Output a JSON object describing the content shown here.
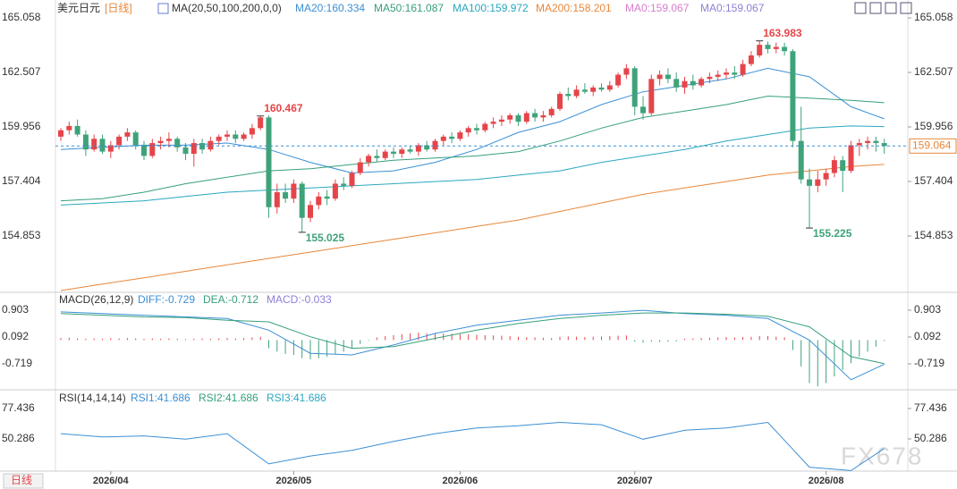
{
  "chart_data": {
    "type": "candlestick",
    "symbol": "美元日元",
    "period": "[日线]",
    "ma_label": "MA(20,50,100,200,0,0)",
    "up_color": "#e5454a",
    "down_color": "#3fa37a",
    "ylim": [
      152.3,
      165.56
    ],
    "yticks": [
      165.058,
      162.507,
      159.956,
      157.404,
      154.853
    ],
    "ohlc": [
      [
        159.5,
        159.9,
        159.3,
        159.8
      ],
      [
        159.8,
        160.2,
        159.6,
        160.0
      ],
      [
        160.0,
        160.3,
        159.5,
        159.6
      ],
      [
        159.6,
        159.8,
        158.6,
        158.9
      ],
      [
        158.9,
        159.6,
        158.8,
        159.4
      ],
      [
        159.4,
        159.6,
        158.7,
        158.8
      ],
      [
        158.8,
        159.3,
        158.5,
        159.1
      ],
      [
        159.1,
        159.6,
        158.9,
        159.5
      ],
      [
        159.5,
        159.9,
        159.3,
        159.7
      ],
      [
        159.7,
        159.8,
        158.9,
        159.1
      ],
      [
        159.1,
        159.3,
        158.4,
        158.6
      ],
      [
        158.6,
        159.4,
        158.5,
        159.2
      ],
      [
        159.2,
        159.5,
        158.9,
        159.3
      ],
      [
        159.3,
        159.7,
        159.0,
        159.4
      ],
      [
        159.4,
        159.5,
        158.8,
        159.0
      ],
      [
        159.0,
        159.2,
        158.4,
        158.7
      ],
      [
        158.7,
        159.4,
        158.1,
        159.2
      ],
      [
        159.2,
        159.4,
        158.7,
        158.9
      ],
      [
        158.9,
        159.5,
        158.8,
        159.3
      ],
      [
        159.3,
        159.6,
        159.1,
        159.5
      ],
      [
        159.5,
        159.8,
        159.3,
        159.6
      ],
      [
        159.6,
        159.8,
        159.2,
        159.4
      ],
      [
        159.4,
        159.7,
        159.3,
        159.6
      ],
      [
        159.6,
        160.1,
        159.4,
        159.9
      ],
      [
        159.9,
        160.467,
        159.8,
        160.4
      ],
      [
        160.4,
        160.5,
        155.7,
        156.2
      ],
      [
        156.2,
        157.3,
        155.9,
        156.9
      ],
      [
        156.9,
        157.3,
        156.4,
        156.6
      ],
      [
        156.6,
        157.5,
        156.4,
        157.3
      ],
      [
        157.3,
        157.4,
        155.025,
        155.7
      ],
      [
        155.7,
        156.5,
        155.5,
        156.3
      ],
      [
        156.3,
        156.9,
        156.1,
        156.7
      ],
      [
        156.7,
        157.0,
        156.3,
        156.6
      ],
      [
        156.6,
        157.5,
        156.5,
        157.3
      ],
      [
        157.3,
        157.6,
        157.0,
        157.2
      ],
      [
        157.2,
        157.9,
        157.1,
        157.8
      ],
      [
        157.8,
        158.5,
        157.7,
        158.3
      ],
      [
        158.3,
        158.7,
        158.1,
        158.6
      ],
      [
        158.6,
        158.9,
        158.3,
        158.5
      ],
      [
        158.5,
        158.9,
        158.4,
        158.8
      ],
      [
        158.8,
        159.0,
        158.5,
        158.7
      ],
      [
        158.7,
        159.0,
        158.5,
        158.9
      ],
      [
        158.9,
        159.1,
        158.7,
        158.8
      ],
      [
        158.8,
        159.2,
        158.6,
        159.1
      ],
      [
        159.1,
        159.3,
        158.8,
        158.9
      ],
      [
        158.9,
        159.4,
        158.8,
        159.3
      ],
      [
        159.3,
        159.6,
        159.1,
        159.5
      ],
      [
        159.5,
        159.7,
        159.2,
        159.4
      ],
      [
        159.4,
        159.8,
        159.3,
        159.7
      ],
      [
        159.7,
        160.0,
        159.5,
        159.9
      ],
      [
        159.9,
        160.1,
        159.6,
        159.8
      ],
      [
        159.8,
        160.2,
        159.7,
        160.1
      ],
      [
        160.1,
        160.4,
        159.9,
        160.2
      ],
      [
        160.2,
        160.5,
        160.0,
        160.3
      ],
      [
        160.3,
        160.6,
        160.1,
        160.5
      ],
      [
        160.5,
        160.6,
        160.0,
        160.2
      ],
      [
        160.2,
        160.7,
        160.1,
        160.6
      ],
      [
        160.6,
        160.8,
        160.2,
        160.4
      ],
      [
        160.4,
        160.7,
        160.2,
        160.5
      ],
      [
        160.5,
        160.9,
        160.4,
        160.8
      ],
      [
        160.8,
        161.6,
        160.7,
        161.5
      ],
      [
        161.5,
        161.8,
        161.2,
        161.4
      ],
      [
        161.4,
        161.9,
        161.3,
        161.7
      ],
      [
        161.7,
        162.0,
        161.5,
        161.6
      ],
      [
        161.6,
        161.9,
        161.4,
        161.8
      ],
      [
        161.8,
        162.0,
        161.6,
        161.7
      ],
      [
        161.7,
        162.1,
        161.6,
        161.9
      ],
      [
        161.9,
        162.5,
        161.8,
        162.4
      ],
      [
        162.4,
        162.9,
        162.2,
        162.7
      ],
      [
        162.7,
        162.8,
        160.5,
        160.9
      ],
      [
        160.9,
        161.4,
        160.3,
        160.6
      ],
      [
        160.6,
        162.4,
        160.5,
        162.2
      ],
      [
        162.2,
        162.6,
        161.9,
        162.4
      ],
      [
        162.4,
        162.7,
        162.0,
        162.2
      ],
      [
        162.2,
        162.5,
        161.6,
        161.8
      ],
      [
        161.8,
        162.3,
        161.5,
        162.1
      ],
      [
        162.1,
        162.4,
        161.7,
        161.9
      ],
      [
        161.9,
        162.3,
        161.8,
        162.2
      ],
      [
        162.2,
        162.5,
        162.0,
        162.3
      ],
      [
        162.3,
        162.6,
        162.1,
        162.4
      ],
      [
        162.4,
        162.7,
        162.2,
        162.5
      ],
      [
        162.5,
        162.8,
        162.2,
        162.4
      ],
      [
        162.4,
        163.1,
        162.3,
        162.9
      ],
      [
        162.9,
        163.5,
        162.8,
        163.3
      ],
      [
        163.3,
        163.983,
        163.2,
        163.8
      ],
      [
        163.8,
        163.95,
        163.4,
        163.6
      ],
      [
        163.6,
        163.9,
        163.4,
        163.7
      ],
      [
        163.7,
        163.9,
        163.3,
        163.5
      ],
      [
        163.5,
        163.6,
        159.0,
        159.3
      ],
      [
        159.3,
        160.9,
        157.3,
        157.5
      ],
      [
        157.5,
        158.0,
        155.225,
        157.2
      ],
      [
        157.2,
        157.9,
        156.9,
        157.5
      ],
      [
        157.5,
        158.0,
        157.2,
        157.8
      ],
      [
        157.8,
        158.6,
        157.6,
        158.4
      ],
      [
        158.4,
        158.6,
        156.9,
        157.9
      ],
      [
        157.9,
        159.3,
        157.8,
        159.1
      ],
      [
        159.1,
        159.4,
        158.6,
        159.2
      ],
      [
        159.2,
        159.5,
        158.9,
        159.3
      ],
      [
        159.3,
        159.5,
        158.8,
        159.2
      ],
      [
        159.2,
        159.4,
        158.7,
        159.064
      ]
    ],
    "extremes": [
      160.467,
      155.025,
      163.983,
      155.225
    ],
    "xticks": [
      {
        "value": 6,
        "label": "2026/04"
      },
      {
        "value": 28,
        "label": "2026/05"
      },
      {
        "value": 48,
        "label": "2026/06"
      },
      {
        "value": 69,
        "label": "2026/07"
      },
      {
        "value": 92,
        "label": "2026/08"
      }
    ],
    "ma_x": [
      0,
      5,
      10,
      15,
      20,
      25,
      30,
      35,
      40,
      45,
      50,
      55,
      60,
      65,
      70,
      75,
      80,
      85,
      90,
      95,
      99
    ],
    "ma_series": [
      {
        "name": "MA20:160.334",
        "color": "#3b8fd6",
        "values": [
          158.9,
          159.0,
          159.1,
          159.1,
          159.2,
          158.9,
          158.3,
          157.8,
          157.9,
          158.3,
          158.9,
          159.7,
          160.2,
          161.0,
          161.6,
          161.9,
          162.2,
          162.7,
          162.3,
          160.9,
          160.334
        ]
      },
      {
        "name": "MA50:161.087",
        "color": "#35a07b",
        "values": [
          156.5,
          156.6,
          156.9,
          157.3,
          157.6,
          157.9,
          158.0,
          158.2,
          158.4,
          158.5,
          158.6,
          158.8,
          159.3,
          159.9,
          160.4,
          160.7,
          161.0,
          161.4,
          161.3,
          161.2,
          161.087
        ]
      },
      {
        "name": "MA100:159.972",
        "color": "#2aa7c0",
        "values": [
          156.3,
          156.4,
          156.5,
          156.7,
          156.9,
          157.0,
          157.1,
          157.2,
          157.3,
          157.4,
          157.5,
          157.7,
          157.9,
          158.3,
          158.6,
          158.9,
          159.3,
          159.6,
          159.9,
          160.0,
          159.972
        ]
      },
      {
        "name": "MA200:158.201",
        "color": "#e8873a",
        "values": [
          152.3,
          152.6,
          152.9,
          153.2,
          153.5,
          153.8,
          154.1,
          154.4,
          154.7,
          155.0,
          155.3,
          155.6,
          156.0,
          156.4,
          156.8,
          157.1,
          157.4,
          157.7,
          157.9,
          158.1,
          158.201
        ]
      }
    ],
    "ma_extra": [
      {
        "name": "MA0:159.067",
        "color": "#d77dcf"
      },
      {
        "name": "MA0:159.067",
        "color": "#8f7fd8"
      }
    ],
    "macd": {
      "title": "MACD(26,12,9)",
      "ylim": [
        -1.395,
        1.362
      ],
      "yticks": [
        0.903,
        0.092,
        -0.719
      ],
      "hist_name": "MACD:-0.033",
      "hist_color": "#8f7fd8",
      "hist": [
        0.06,
        0.07,
        0.05,
        0.04,
        0.05,
        0.04,
        0.06,
        0.05,
        0.06,
        0.05,
        0.04,
        0.05,
        0.04,
        0.05,
        0.04,
        0.03,
        0.04,
        0.05,
        0.04,
        0.05,
        0.06,
        0.05,
        0.06,
        0.08,
        0.1,
        -0.25,
        -0.35,
        -0.42,
        -0.45,
        -0.55,
        -0.58,
        -0.55,
        -0.5,
        -0.42,
        -0.35,
        -0.25,
        -0.12,
        -0.02,
        0.08,
        0.12,
        0.15,
        0.18,
        0.2,
        0.22,
        0.2,
        0.21,
        0.2,
        0.19,
        0.18,
        0.17,
        0.16,
        0.15,
        0.14,
        0.13,
        0.12,
        0.1,
        0.09,
        0.08,
        0.07,
        0.06,
        0.1,
        0.11,
        0.1,
        0.09,
        0.1,
        0.11,
        0.12,
        0.13,
        0.14,
        -0.05,
        -0.08,
        -0.05,
        -0.06,
        -0.05,
        -0.04,
        0.04,
        0.05,
        0.06,
        0.07,
        0.08,
        0.09,
        0.08,
        0.09,
        0.1,
        0.12,
        0.12,
        0.1,
        0.08,
        -0.3,
        -0.8,
        -1.3,
        -1.4,
        -1.3,
        -1.1,
        -0.9,
        -0.7,
        -0.5,
        -0.35,
        -0.2,
        -0.033
      ],
      "lines": [
        {
          "name": "DIFF:-0.729",
          "color": "#3b8fd6",
          "values": [
            0.85,
            0.8,
            0.75,
            0.7,
            0.65,
            0.3,
            -0.4,
            -0.45,
            -0.15,
            0.2,
            0.45,
            0.6,
            0.75,
            0.82,
            0.9,
            0.8,
            0.75,
            0.65,
            0.0,
            -1.2,
            -0.729
          ]
        },
        {
          "name": "DEA:-0.712",
          "color": "#35a07b",
          "values": [
            0.8,
            0.75,
            0.7,
            0.68,
            0.6,
            0.55,
            0.1,
            -0.25,
            -0.2,
            0.05,
            0.3,
            0.5,
            0.65,
            0.75,
            0.82,
            0.82,
            0.78,
            0.72,
            0.4,
            -0.5,
            -0.712
          ]
        }
      ]
    },
    "rsi": {
      "title": "RSI(14,14,14)",
      "ylim": [
        23.1,
        91.0
      ],
      "yticks": [
        77.436,
        50.286
      ],
      "series": [
        {
          "name": "RSI1:41.686",
          "color": "#3b8fd6",
          "values": [
            55,
            52,
            53,
            50,
            55,
            28,
            35,
            40,
            48,
            55,
            60,
            62,
            65,
            63,
            50,
            58,
            60,
            65,
            25,
            22,
            41.686
          ]
        },
        {
          "name": "RSI2:41.686",
          "color": "#35a07b"
        },
        {
          "name": "RSI3:41.686",
          "color": "#2aa7c0"
        }
      ]
    },
    "tab": "日线",
    "watermark": "FX678"
  }
}
